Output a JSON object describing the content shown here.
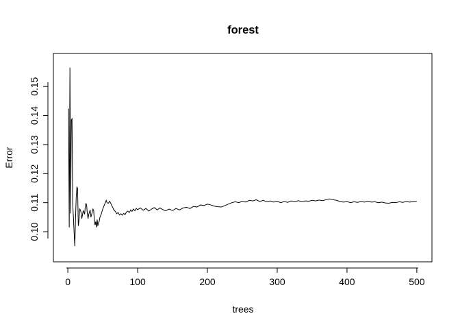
{
  "chart_data": {
    "type": "line",
    "title": "forest",
    "xlabel": "trees",
    "ylabel": "Error",
    "xlim": [
      1,
      500
    ],
    "ylim": [
      0.0925,
      0.1585
    ],
    "xticks": [
      0,
      100,
      200,
      300,
      400,
      500
    ],
    "xtick_labels": [
      "0",
      "100",
      "200",
      "300",
      "400",
      "500"
    ],
    "yticks": [
      0.1,
      0.11,
      0.12,
      0.13,
      0.14,
      0.15
    ],
    "ytick_labels": [
      "0.10",
      "0.11",
      "0.12",
      "0.13",
      "0.14",
      "0.15"
    ],
    "grid": false,
    "series": [
      {
        "color": "#000000",
        "points": [
          [
            1,
            0.1424
          ],
          [
            2,
            0.1015
          ],
          [
            3,
            0.1565
          ],
          [
            4,
            0.1063
          ],
          [
            5,
            0.1385
          ],
          [
            6,
            0.1389
          ],
          [
            7,
            0.1094
          ],
          [
            8,
            0.105
          ],
          [
            9,
            0.0995
          ],
          [
            10,
            0.095
          ],
          [
            11,
            0.1045
          ],
          [
            12,
            0.112
          ],
          [
            13,
            0.1155
          ],
          [
            14,
            0.1148
          ],
          [
            15,
            0.102
          ],
          [
            16,
            0.104
          ],
          [
            17,
            0.1078
          ],
          [
            18,
            0.1075
          ],
          [
            19,
            0.1065
          ],
          [
            20,
            0.1045
          ],
          [
            21,
            0.1058
          ],
          [
            22,
            0.1072
          ],
          [
            23,
            0.1068
          ],
          [
            24,
            0.106
          ],
          [
            25,
            0.1085
          ],
          [
            26,
            0.1098
          ],
          [
            27,
            0.109
          ],
          [
            28,
            0.106
          ],
          [
            29,
            0.1045
          ],
          [
            30,
            0.106
          ],
          [
            32,
            0.1075
          ],
          [
            33,
            0.105
          ],
          [
            35,
            0.1068
          ],
          [
            36,
            0.1078
          ],
          [
            37,
            0.1073
          ],
          [
            38,
            0.104
          ],
          [
            39,
            0.1023
          ],
          [
            40,
            0.1035
          ],
          [
            41,
            0.1015
          ],
          [
            42,
            0.1042
          ],
          [
            43,
            0.102
          ],
          [
            44,
            0.1032
          ],
          [
            45,
            0.1036
          ],
          [
            46,
            0.105
          ],
          [
            48,
            0.1062
          ],
          [
            50,
            0.1078
          ],
          [
            52,
            0.109
          ],
          [
            54,
            0.1102
          ],
          [
            55,
            0.1108
          ],
          [
            56,
            0.11
          ],
          [
            58,
            0.1098
          ],
          [
            60,
            0.1105
          ],
          [
            62,
            0.1095
          ],
          [
            64,
            0.1085
          ],
          [
            66,
            0.1075
          ],
          [
            68,
            0.107
          ],
          [
            70,
            0.1062
          ],
          [
            72,
            0.1066
          ],
          [
            74,
            0.1058
          ],
          [
            76,
            0.1062
          ],
          [
            78,
            0.1057
          ],
          [
            80,
            0.1063
          ],
          [
            82,
            0.1059
          ],
          [
            84,
            0.1068
          ],
          [
            86,
            0.1071
          ],
          [
            88,
            0.1066
          ],
          [
            90,
            0.1075
          ],
          [
            92,
            0.107
          ],
          [
            94,
            0.1078
          ],
          [
            96,
            0.1072
          ],
          [
            98,
            0.108
          ],
          [
            100,
            0.1076
          ],
          [
            104,
            0.1082
          ],
          [
            108,
            0.1074
          ],
          [
            112,
            0.108
          ],
          [
            116,
            0.1071
          ],
          [
            120,
            0.1078
          ],
          [
            124,
            0.1083
          ],
          [
            128,
            0.1075
          ],
          [
            132,
            0.1082
          ],
          [
            136,
            0.1076
          ],
          [
            140,
            0.1072
          ],
          [
            145,
            0.1078
          ],
          [
            150,
            0.1073
          ],
          [
            155,
            0.108
          ],
          [
            160,
            0.1075
          ],
          [
            165,
            0.1082
          ],
          [
            170,
            0.1084
          ],
          [
            175,
            0.108
          ],
          [
            180,
            0.1087
          ],
          [
            185,
            0.1085
          ],
          [
            190,
            0.1092
          ],
          [
            195,
            0.109
          ],
          [
            200,
            0.1095
          ],
          [
            205,
            0.1092
          ],
          [
            210,
            0.1088
          ],
          [
            215,
            0.1086
          ],
          [
            220,
            0.1085
          ],
          [
            225,
            0.109
          ],
          [
            230,
            0.1095
          ],
          [
            235,
            0.11
          ],
          [
            240,
            0.1103
          ],
          [
            245,
            0.11
          ],
          [
            250,
            0.1105
          ],
          [
            255,
            0.1102
          ],
          [
            260,
            0.1108
          ],
          [
            265,
            0.1106
          ],
          [
            270,
            0.111
          ],
          [
            275,
            0.1104
          ],
          [
            280,
            0.1108
          ],
          [
            285,
            0.1103
          ],
          [
            290,
            0.1106
          ],
          [
            295,
            0.1102
          ],
          [
            300,
            0.1105
          ],
          [
            305,
            0.11
          ],
          [
            310,
            0.1104
          ],
          [
            315,
            0.1101
          ],
          [
            320,
            0.1106
          ],
          [
            325,
            0.1103
          ],
          [
            330,
            0.1107
          ],
          [
            335,
            0.1104
          ],
          [
            340,
            0.1106
          ],
          [
            345,
            0.1105
          ],
          [
            350,
            0.1108
          ],
          [
            355,
            0.1106
          ],
          [
            360,
            0.1109
          ],
          [
            365,
            0.1107
          ],
          [
            370,
            0.111
          ],
          [
            375,
            0.1113
          ],
          [
            380,
            0.111
          ],
          [
            385,
            0.1108
          ],
          [
            390,
            0.1104
          ],
          [
            395,
            0.1102
          ],
          [
            400,
            0.1104
          ],
          [
            405,
            0.11
          ],
          [
            410,
            0.1103
          ],
          [
            415,
            0.1101
          ],
          [
            420,
            0.1104
          ],
          [
            425,
            0.1102
          ],
          [
            430,
            0.1105
          ],
          [
            435,
            0.1102
          ],
          [
            440,
            0.1103
          ],
          [
            445,
            0.11
          ],
          [
            450,
            0.1102
          ],
          [
            455,
            0.1099
          ],
          [
            460,
            0.1098
          ],
          [
            465,
            0.1101
          ],
          [
            470,
            0.11
          ],
          [
            475,
            0.1103
          ],
          [
            480,
            0.1101
          ],
          [
            485,
            0.1104
          ],
          [
            490,
            0.1102
          ],
          [
            495,
            0.1104
          ],
          [
            500,
            0.1104
          ]
        ]
      }
    ]
  }
}
